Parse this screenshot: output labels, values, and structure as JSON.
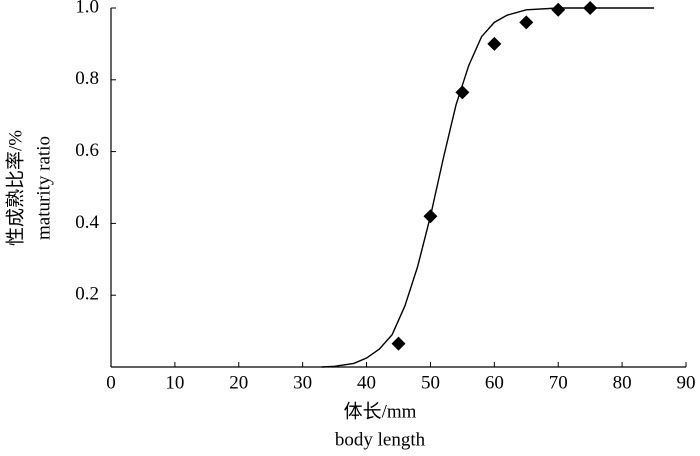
{
  "chart_data": {
    "type": "scatter",
    "x_label": [
      "体长/mm",
      "body length"
    ],
    "y_label": [
      "性成熟比率/%",
      "maturity ratio"
    ],
    "xlim": [
      0,
      90
    ],
    "xticks": [
      0,
      10,
      20,
      30,
      40,
      50,
      60,
      70,
      80,
      90
    ],
    "ylim": [
      0,
      1
    ],
    "yticks": [
      0.2,
      0.4,
      0.6,
      0.8,
      {
        "value": 1,
        "label": "1.0"
      }
    ],
    "grid": false,
    "series": [
      {
        "kind": "scatter",
        "color": "#000000",
        "marker": "diamond",
        "x": [
          45,
          50,
          55,
          60,
          65,
          70,
          75
        ],
        "values": [
          0.065,
          0.42,
          0.765,
          0.9,
          0.96,
          0.995,
          1.0
        ]
      },
      {
        "kind": "line",
        "color": "#000000",
        "x": [
          33,
          35,
          38,
          40,
          42,
          44,
          46,
          48,
          50,
          52,
          54,
          56,
          58,
          60,
          62,
          65,
          70,
          85
        ],
        "values": [
          0,
          0.002,
          0.01,
          0.025,
          0.05,
          0.09,
          0.17,
          0.28,
          0.42,
          0.58,
          0.73,
          0.84,
          0.92,
          0.96,
          0.98,
          0.995,
          1.0,
          1.0
        ]
      }
    ]
  }
}
